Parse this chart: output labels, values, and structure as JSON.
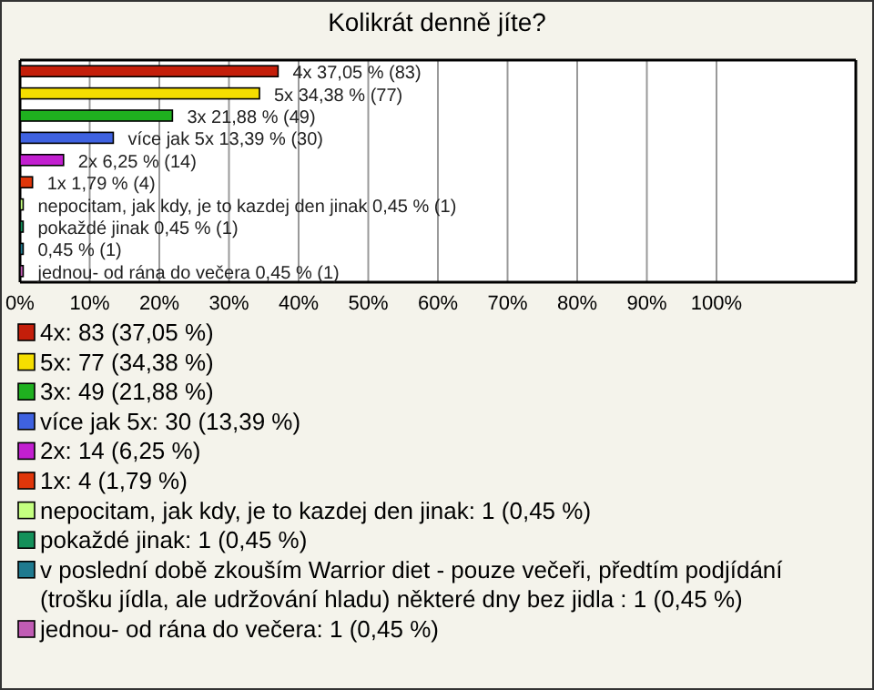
{
  "chart_data": {
    "type": "bar",
    "orientation": "horizontal",
    "title": "Kolikrát denně jíte?",
    "categories": [
      null
    ],
    "series": [
      {
        "name": "4x: 83 (37,05 %)",
        "color": "#c41e0a",
        "values": [
          37.05
        ],
        "value_labels": [
          "4x 37,05 % (83)"
        ]
      },
      {
        "name": "5x: 77 (34,38 %)",
        "color": "#f5de00",
        "values": [
          34.38
        ],
        "value_labels": [
          "5x 34,38 % (77)"
        ]
      },
      {
        "name": "3x: 49 (21,88 %)",
        "color": "#1fb01f",
        "values": [
          21.88
        ],
        "value_labels": [
          "3x 21,88 % (49)"
        ]
      },
      {
        "name": "více jak 5x: 30 (13,39 %)",
        "color": "#3f62e0",
        "values": [
          13.39
        ],
        "value_labels": [
          "více jak 5x 13,39 % (30)"
        ]
      },
      {
        "name": "2x: 14 (6,25 %)",
        "color": "#c21fd0",
        "values": [
          6.25
        ],
        "value_labels": [
          "2x 6,25 % (14)"
        ]
      },
      {
        "name": "1x: 4 (1,79 %)",
        "color": "#e0360a",
        "values": [
          1.79
        ],
        "value_labels": [
          "1x 1,79 % (4)"
        ]
      },
      {
        "name": "nepocitam, jak kdy, je to kazdej den jinak: 1 (0,45 %)",
        "color": "#c4ff80",
        "values": [
          0.45
        ],
        "value_labels": [
          "nepocitam, jak kdy, je to kazdej den jinak 0,45 % (1)"
        ]
      },
      {
        "name": "pokaždé jinak: 1 (0,45 %)",
        "color": "#14905a",
        "values": [
          0.45
        ],
        "value_labels": [
          "pokaždé jinak 0,45 % (1)"
        ]
      },
      {
        "name": "v poslední době zkouším Warrior diet - pouze večeři, předtím podjídání (trošku jídla, ale udržování hladu) některé dny bez jidla : 1 (0,45 %)",
        "color": "#1f7a8f",
        "values": [
          0.45
        ],
        "value_labels": [
          "0,45 % (1)"
        ]
      },
      {
        "name": "jednou- od rána do večera: 1 (0,45 %)",
        "color": "#c05cb4",
        "values": [
          0.45
        ],
        "value_labels": [
          "jednou- od rána do večera 0,45 % (1)"
        ]
      }
    ],
    "xlim": [
      0,
      120
    ],
    "xticks": [
      {
        "value": 0,
        "label": "0%"
      },
      {
        "value": 10,
        "label": "10%"
      },
      {
        "value": 20,
        "label": "20%"
      },
      {
        "value": 30,
        "label": "30%"
      },
      {
        "value": 40,
        "label": "40%"
      },
      {
        "value": 50,
        "label": "50%"
      },
      {
        "value": 60,
        "label": "60%"
      },
      {
        "value": 70,
        "label": "70%"
      },
      {
        "value": 80,
        "label": "80%"
      },
      {
        "value": 90,
        "label": "90%"
      },
      {
        "value": 100,
        "label": "100%"
      }
    ],
    "grid": "x",
    "tick_labels": "x",
    "legend": "bottom"
  }
}
